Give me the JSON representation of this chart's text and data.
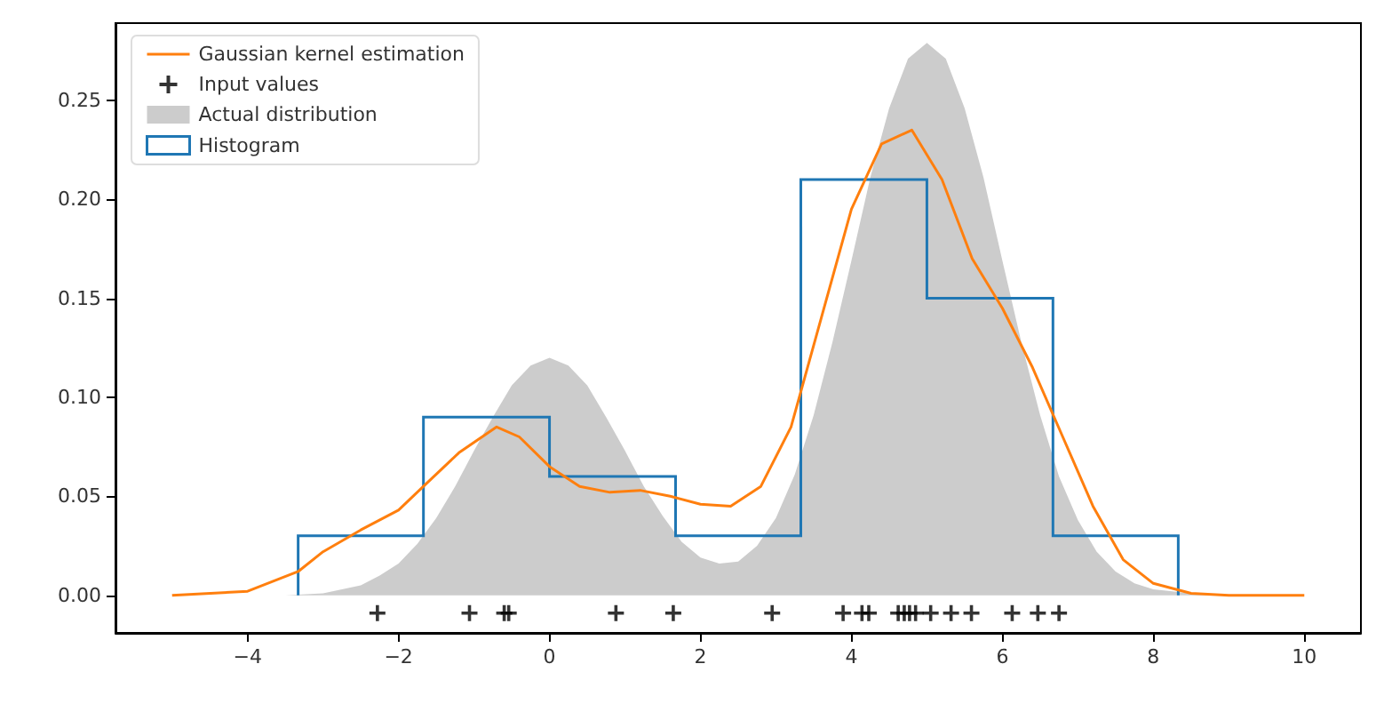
{
  "chart_data": {
    "type": "line",
    "xlim": [
      -5.75,
      10.75
    ],
    "ylim": [
      -0.019,
      0.289
    ],
    "xticks": [
      {
        "value": -4,
        "label": "−4"
      },
      {
        "value": -2,
        "label": "−2"
      },
      0,
      2,
      4,
      6,
      8,
      10
    ],
    "yticks": [
      {
        "value": 0,
        "label": "0.00"
      },
      {
        "value": 0.05,
        "label": "0.05"
      },
      {
        "value": 0.1,
        "label": "0.10"
      },
      {
        "value": 0.15,
        "label": "0.15"
      },
      {
        "value": 0.2,
        "label": "0.20"
      },
      {
        "value": 0.25,
        "label": "0.25"
      }
    ],
    "grid": false,
    "legend": "top left",
    "series": [
      {
        "name": "Gaussian kernel estimation",
        "color": "#ff7f0e",
        "marker": "none",
        "x": [
          -5,
          -4,
          -3.33,
          -3,
          -2.5,
          -2,
          -1.67,
          -1.2,
          -0.7,
          -0.4,
          0,
          0.4,
          0.8,
          1.2,
          1.6,
          2,
          2.4,
          2.8,
          3.2,
          3.6,
          4,
          4.4,
          4.8,
          5.2,
          5.6,
          6,
          6.4,
          6.8,
          7.2,
          7.6,
          8,
          8.5,
          9,
          10
        ],
        "values": [
          0,
          0.002,
          0.012,
          0.022,
          0.033,
          0.043,
          0.055,
          0.072,
          0.085,
          0.08,
          0.065,
          0.055,
          0.052,
          0.053,
          0.05,
          0.046,
          0.045,
          0.055,
          0.085,
          0.14,
          0.195,
          0.228,
          0.235,
          0.21,
          0.17,
          0.145,
          0.115,
          0.08,
          0.045,
          0.018,
          0.006,
          0.001,
          0,
          0
        ]
      },
      {
        "name": "Input values",
        "type": "scatter",
        "color": "#000000",
        "marker": "cross",
        "x": [
          -2.28,
          -1.06,
          -0.6,
          -0.54,
          0.88,
          1.64,
          2.95,
          3.89,
          4.14,
          4.23,
          4.62,
          4.7,
          4.77,
          4.85,
          5.05,
          5.32,
          5.59,
          6.13,
          6.47,
          6.75
        ],
        "values": [
          -0.009,
          -0.009,
          -0.009,
          -0.009,
          -0.009,
          -0.009,
          -0.009,
          -0.009,
          -0.009,
          -0.009,
          -0.009,
          -0.009,
          -0.009,
          -0.009,
          -0.009,
          -0.009,
          -0.009,
          -0.009,
          -0.009,
          -0.009
        ]
      },
      {
        "name": "Actual distribution",
        "type": "area",
        "color": "#cccccc",
        "x": [
          -5,
          -4,
          -3.5,
          -3,
          -2.75,
          -2.5,
          -2.25,
          -2,
          -1.75,
          -1.5,
          -1.25,
          -1,
          -0.75,
          -0.5,
          -0.25,
          0,
          0.25,
          0.5,
          0.75,
          1,
          1.25,
          1.5,
          1.75,
          2,
          2.25,
          2.5,
          2.75,
          3,
          3.25,
          3.5,
          3.75,
          4,
          4.25,
          4.5,
          4.75,
          5,
          5.25,
          5.5,
          5.75,
          6,
          6.25,
          6.5,
          6.75,
          7,
          7.25,
          7.5,
          7.75,
          8,
          8.5,
          9,
          10
        ],
        "values": [
          0,
          0,
          0,
          0.001,
          0.003,
          0.005,
          0.01,
          0.016,
          0.026,
          0.039,
          0.055,
          0.073,
          0.09,
          0.106,
          0.116,
          0.12,
          0.116,
          0.106,
          0.09,
          0.073,
          0.055,
          0.04,
          0.027,
          0.019,
          0.016,
          0.017,
          0.025,
          0.039,
          0.061,
          0.091,
          0.128,
          0.169,
          0.211,
          0.246,
          0.271,
          0.279,
          0.271,
          0.246,
          0.211,
          0.169,
          0.128,
          0.091,
          0.06,
          0.038,
          0.022,
          0.012,
          0.006,
          0.003,
          0.001,
          0,
          0
        ]
      },
      {
        "name": "Histogram",
        "type": "histogram",
        "color": "#1f77b4",
        "bins": [
          -3.33,
          -1.67,
          0,
          1.67,
          3.33,
          5,
          6.67,
          8.33
        ],
        "values": [
          0.03,
          0.09,
          0.06,
          0.03,
          0.21,
          0.15,
          0.03
        ]
      }
    ]
  }
}
